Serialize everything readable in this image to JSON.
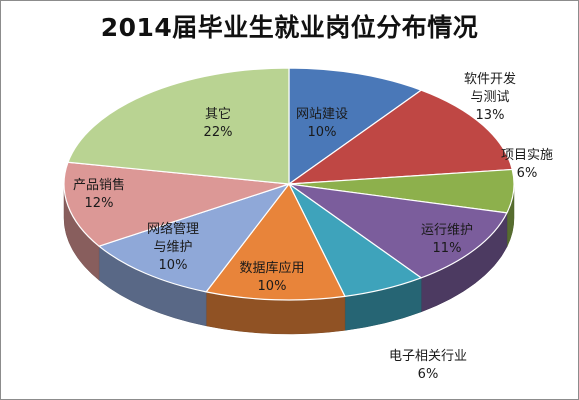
{
  "chart_data": {
    "type": "pie",
    "title": "2014届毕业生就业岗位分布情况",
    "slices": [
      {
        "label_lines": [
          "网站建设"
        ],
        "value": 10,
        "value_label": "10%",
        "color": "#4a78b8"
      },
      {
        "label_lines": [
          "软件开发",
          "与测试"
        ],
        "value": 13,
        "value_label": "13%",
        "color": "#bf4744"
      },
      {
        "label_lines": [
          "项目实施"
        ],
        "value": 6,
        "value_label": "6%",
        "color": "#8db04c"
      },
      {
        "label_lines": [
          "运行维护"
        ],
        "value": 11,
        "value_label": "11%",
        "color": "#7b5d9c"
      },
      {
        "label_lines": [
          "电子相关行业"
        ],
        "value": 6,
        "value_label": "6%",
        "color": "#3ea3bb"
      },
      {
        "label_lines": [
          "数据库应用"
        ],
        "value": 10,
        "value_label": "10%",
        "color": "#e8843a"
      },
      {
        "label_lines": [
          "网络管理",
          "与维护"
        ],
        "value": 10,
        "value_label": "10%",
        "color": "#8fa8d8"
      },
      {
        "label_lines": [
          "产品销售"
        ],
        "value": 12,
        "value_label": "12%",
        "color": "#dc9896"
      },
      {
        "label_lines": [
          "其它"
        ],
        "value": 22,
        "value_label": "22%",
        "color": "#b9d392"
      }
    ]
  }
}
